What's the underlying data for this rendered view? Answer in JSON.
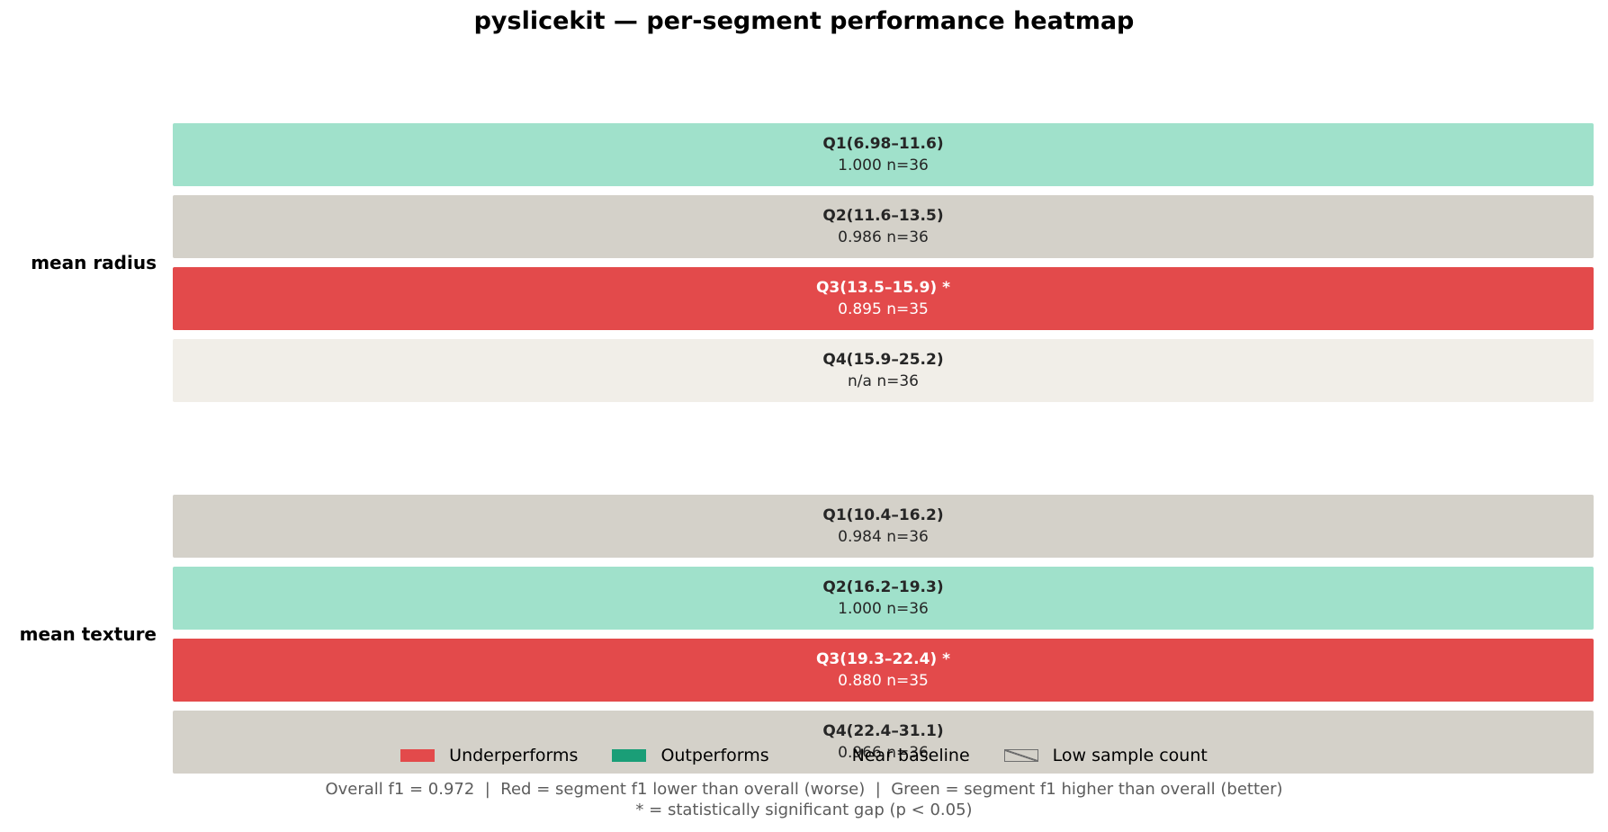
{
  "title": "pyslicekit — per-segment performance heatmap",
  "colors": {
    "underperforms": "#e34a4b",
    "outperforms": "#1a9e77",
    "outperforms_light": "#a0e1cb",
    "near_baseline": "#d4d1c9",
    "no_data": "#f1eee8",
    "text_dark": "#262626",
    "text_light": "#ffffff"
  },
  "chart_data": {
    "type": "heatmap",
    "metric": "f1",
    "overall": 0.972,
    "groups": [
      {
        "feature": "mean radius",
        "segments": [
          {
            "label": "Q1(6.98–11.6)",
            "value": "1.000",
            "n": "n=36",
            "status": "outperforms",
            "significant": false
          },
          {
            "label": "Q2(11.6–13.5)",
            "value": "0.986",
            "n": "n=36",
            "status": "near_baseline",
            "significant": false
          },
          {
            "label": "Q3(13.5–15.9) *",
            "value": "0.895",
            "n": "n=35",
            "status": "underperforms",
            "significant": true
          },
          {
            "label": "Q4(15.9–25.2)",
            "value": "n/a",
            "n": "n=36",
            "status": "no_data",
            "significant": false
          }
        ]
      },
      {
        "feature": "mean texture",
        "segments": [
          {
            "label": "Q1(10.4–16.2)",
            "value": "0.984",
            "n": "n=36",
            "status": "near_baseline",
            "significant": false
          },
          {
            "label": "Q2(16.2–19.3)",
            "value": "1.000",
            "n": "n=36",
            "status": "outperforms",
            "significant": false
          },
          {
            "label": "Q3(19.3–22.4) *",
            "value": "0.880",
            "n": "n=35",
            "status": "underperforms",
            "significant": true
          },
          {
            "label": "Q4(22.4–31.1)",
            "value": "0.966",
            "n": "n=36",
            "status": "near_baseline",
            "significant": false
          }
        ]
      }
    ]
  },
  "legend": {
    "underperforms": "Underperforms",
    "outperforms": "Outperforms",
    "near_baseline": "Near baseline",
    "low_sample": "Low sample count"
  },
  "footnote": {
    "line1": "Overall f1 = 0.972  |  Red = segment f1 lower than overall (worse)  |  Green = segment f1 higher than overall (better)",
    "line2": "* = statistically significant gap (p < 0.05)"
  }
}
